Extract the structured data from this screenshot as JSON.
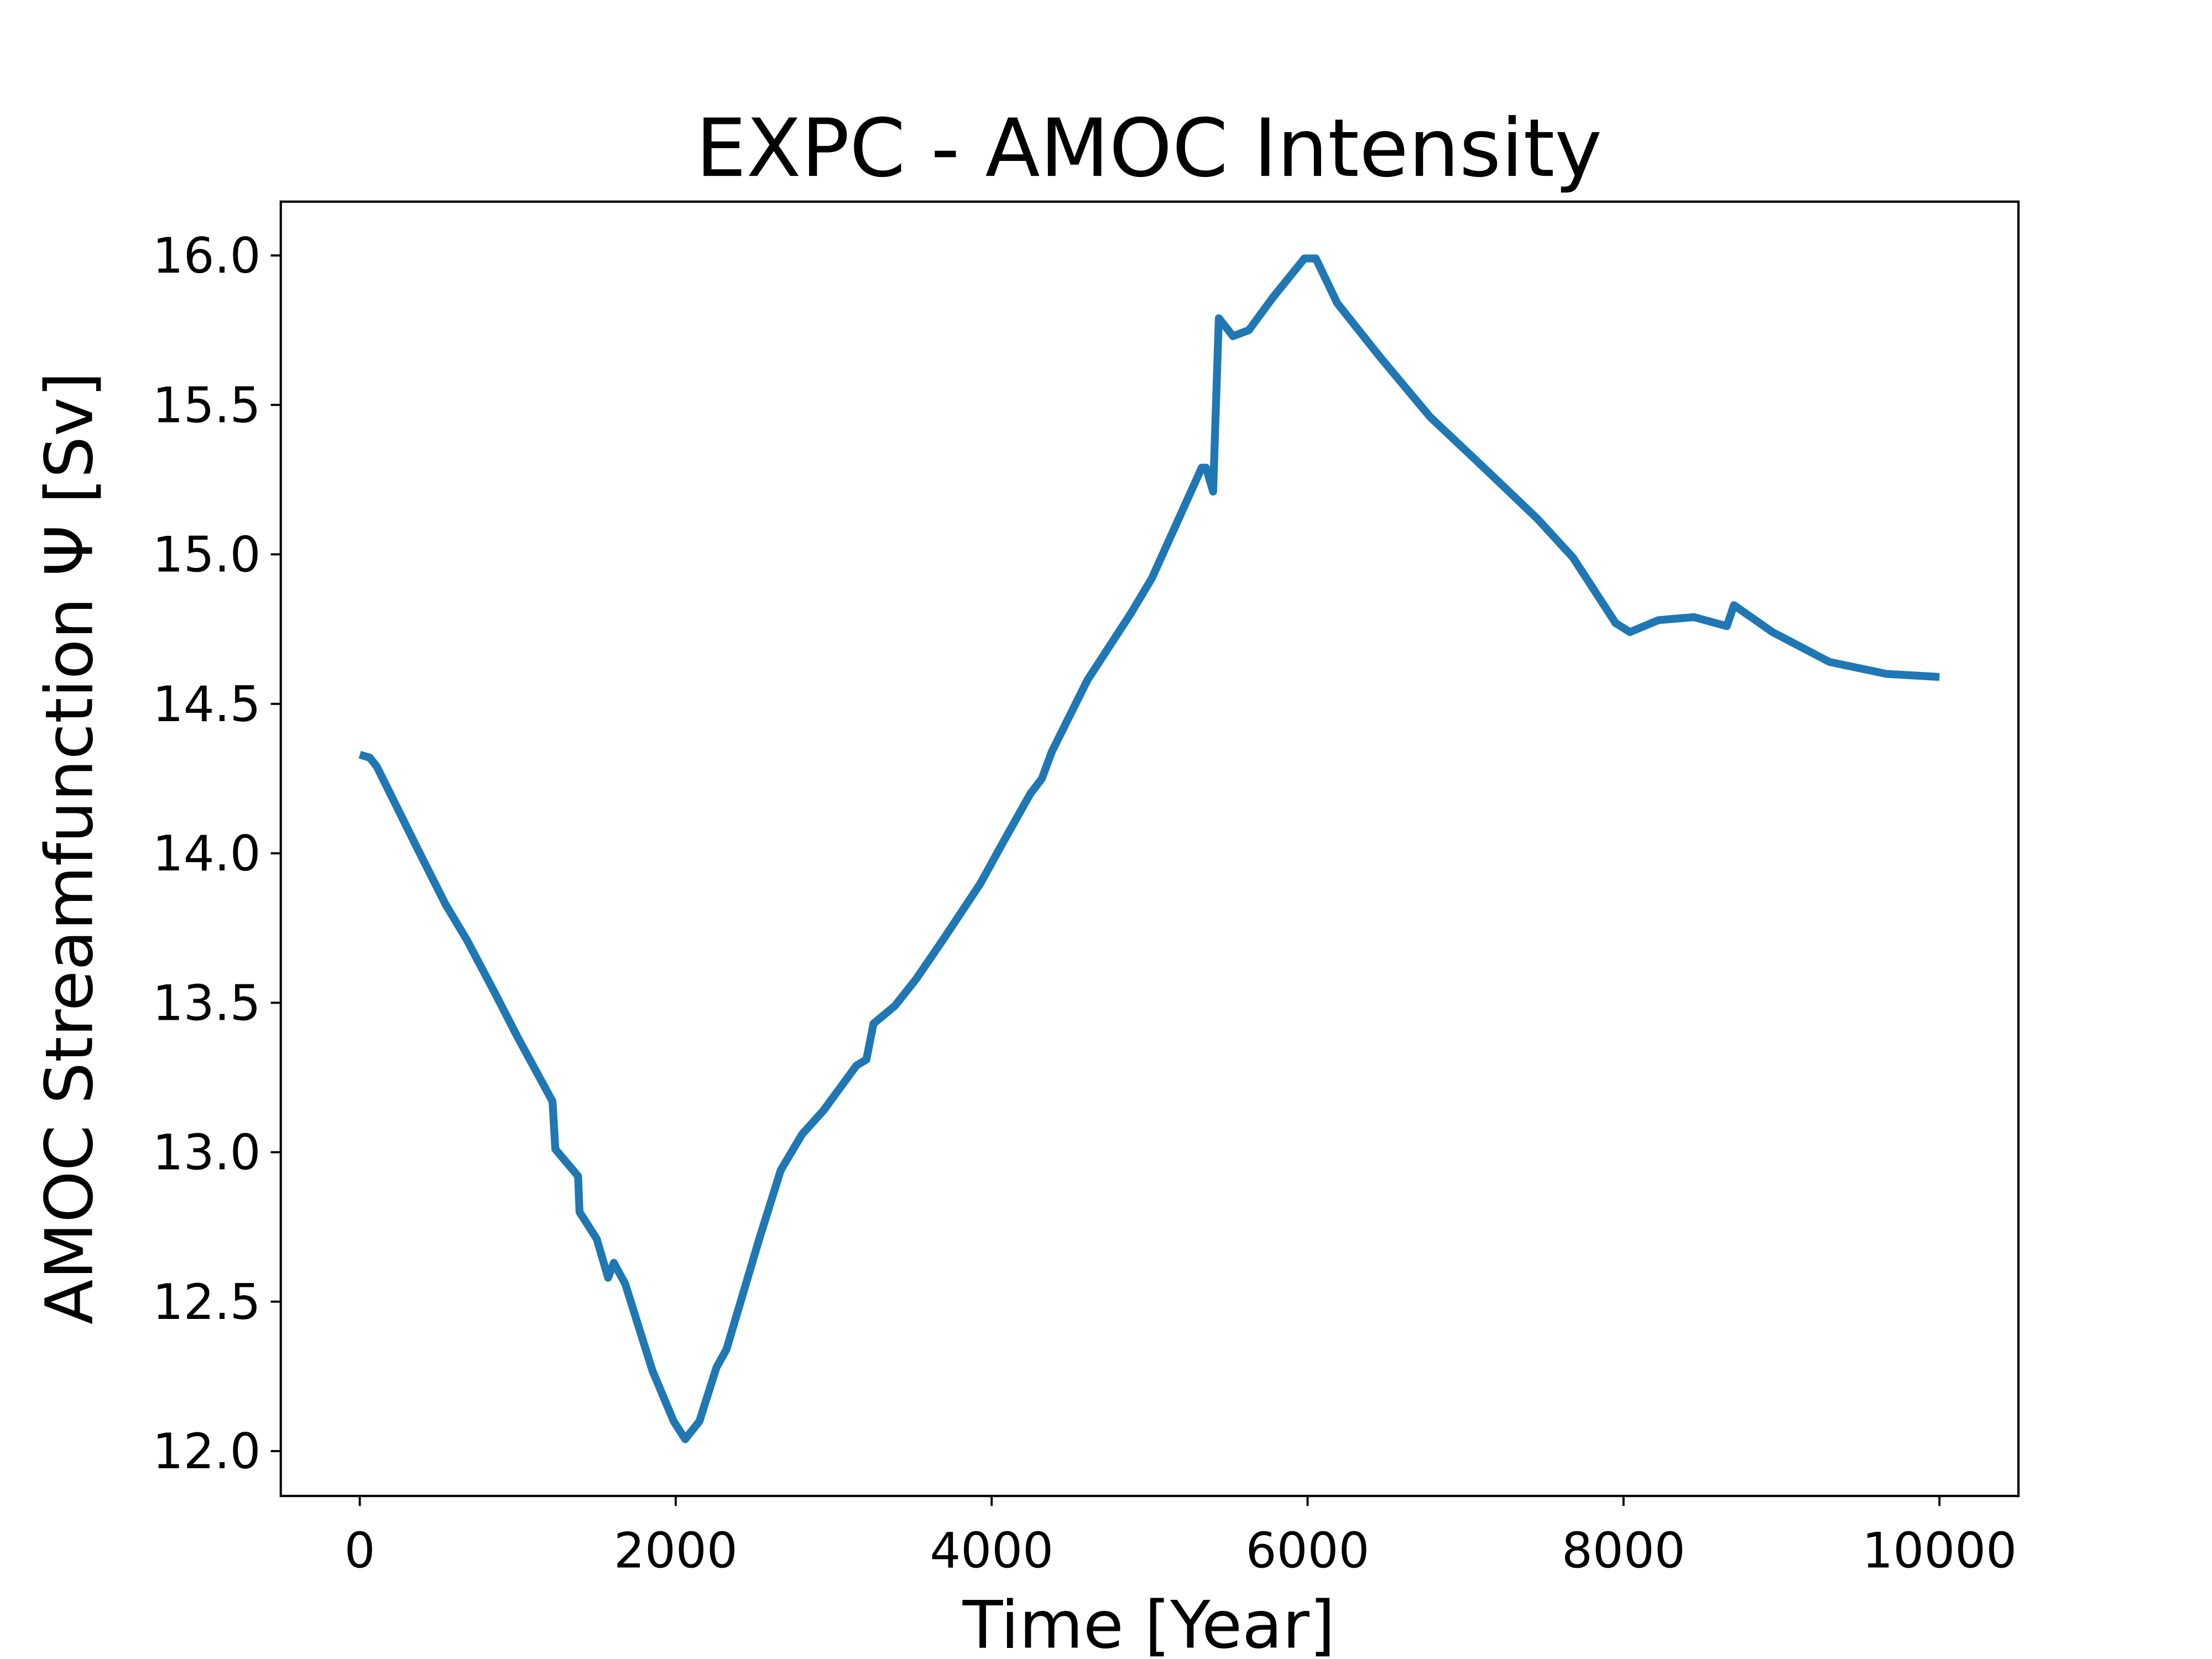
{
  "chart_data": {
    "type": "line",
    "title": "EXPC - AMOC Intensity",
    "xlabel": "Time [Year]",
    "ylabel": "AMOC Streamfunction Ψ [Sv]",
    "xlim": [
      -500,
      10500
    ],
    "ylim": [
      11.85,
      16.18
    ],
    "xticks": [
      0,
      2000,
      4000,
      6000,
      8000,
      10000
    ],
    "yticks": [
      {
        "value": 12,
        "label": "12.0"
      },
      12.5,
      {
        "value": 13,
        "label": "13.0"
      },
      13.5,
      {
        "value": 14,
        "label": "14.0"
      },
      14.5,
      {
        "value": 15,
        "label": "15.0"
      },
      15.5,
      {
        "value": 16,
        "label": "16.0"
      }
    ],
    "grid": false,
    "series": [
      {
        "name": "AMOC",
        "color": "#1f77b4",
        "x": [
          0,
          63,
          108,
          361,
          542,
          678,
          858,
          994,
          1220,
          1238,
          1382,
          1391,
          1500,
          1572,
          1608,
          1680,
          1852,
          1987,
          2060,
          2150,
          2258,
          2321,
          2529,
          2665,
          2800,
          2936,
          3144,
          3207,
          3252,
          3388,
          3523,
          3704,
          3930,
          4065,
          4246,
          4318,
          4381,
          4607,
          4878,
          5014,
          5330,
          5357,
          5402,
          5438,
          5528,
          5628,
          5781,
          5980,
          6052,
          6188,
          6459,
          6775,
          7136,
          7453,
          7679,
          7950,
          8040,
          8221,
          8446,
          8654,
          8699,
          8943,
          9304,
          9666,
          10000
        ],
        "values": [
          14.33,
          14.32,
          14.29,
          14.02,
          13.83,
          13.71,
          13.53,
          13.39,
          13.17,
          13.01,
          12.92,
          12.8,
          12.71,
          12.58,
          12.63,
          12.56,
          12.27,
          12.1,
          12.04,
          12.1,
          12.28,
          12.34,
          12.71,
          12.94,
          13.06,
          13.14,
          13.29,
          13.31,
          13.43,
          13.49,
          13.58,
          13.72,
          13.9,
          14.03,
          14.2,
          14.25,
          14.34,
          14.58,
          14.8,
          14.92,
          15.29,
          15.29,
          15.21,
          15.79,
          15.73,
          15.75,
          15.86,
          15.99,
          15.99,
          15.84,
          15.66,
          15.46,
          15.28,
          15.12,
          14.99,
          14.77,
          14.74,
          14.78,
          14.79,
          14.76,
          14.83,
          14.74,
          14.64,
          14.6,
          14.59
        ]
      }
    ]
  }
}
